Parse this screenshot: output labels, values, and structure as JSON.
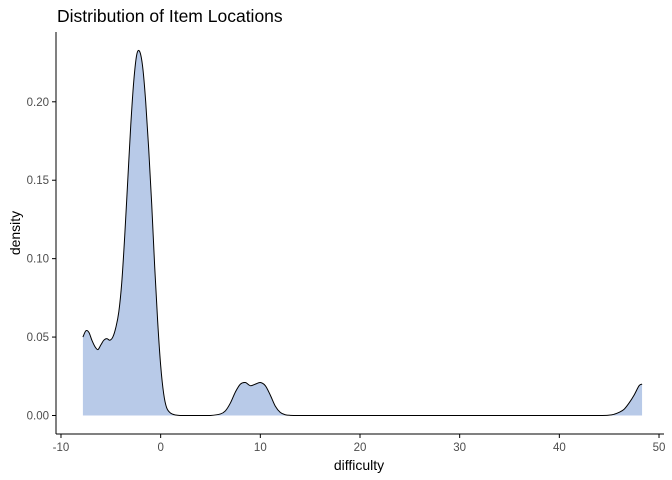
{
  "chart_data": {
    "type": "area",
    "title": "Distribution of Item Locations",
    "xlabel": "difficulty",
    "ylabel": "density",
    "xlim": [
      -10.5,
      50.5
    ],
    "ylim": [
      -0.0118,
      0.2445
    ],
    "x_ticks": [
      -10,
      0,
      10,
      20,
      30,
      40,
      50
    ],
    "x_tick_labels": [
      "-10",
      "0",
      "10",
      "20",
      "30",
      "40",
      "50"
    ],
    "y_ticks": [
      0.0,
      0.05,
      0.1,
      0.15,
      0.2
    ],
    "y_tick_labels": [
      "0.00",
      "0.05",
      "0.10",
      "0.15",
      "0.20"
    ],
    "grid": false,
    "legend": "none",
    "colors": {
      "fill": "#b8cae8",
      "line": "#000000"
    },
    "series": [
      {
        "x": [
          -7.8,
          -7.5,
          -7.2,
          -6.9,
          -6.6,
          -6.3,
          -6.0,
          -5.7,
          -5.4,
          -5.1,
          -4.8,
          -4.5,
          -4.2,
          -3.9,
          -3.6,
          -3.3,
          -3.0,
          -2.7,
          -2.4,
          -2.1,
          -1.8,
          -1.5,
          -1.2,
          -0.9,
          -0.6,
          -0.3,
          0.0,
          0.3,
          0.6,
          1.0,
          1.5,
          2.0,
          3.0,
          4.0,
          5.0,
          6.0,
          6.5,
          7.0,
          7.5,
          8.0,
          8.5,
          9.0,
          9.5,
          10.0,
          10.5,
          11.0,
          11.5,
          12.0,
          12.5,
          13.0,
          14.0,
          16.0,
          20.0,
          25.0,
          30.0,
          35.0,
          40.0,
          44.0,
          45.0,
          45.5,
          46.0,
          46.5,
          47.0,
          47.5,
          48.0,
          48.3
        ],
        "y": [
          0.05,
          0.054,
          0.053,
          0.048,
          0.044,
          0.042,
          0.045,
          0.048,
          0.049,
          0.048,
          0.05,
          0.056,
          0.066,
          0.085,
          0.115,
          0.15,
          0.185,
          0.213,
          0.23,
          0.232,
          0.222,
          0.2,
          0.17,
          0.135,
          0.095,
          0.06,
          0.032,
          0.014,
          0.005,
          0.0015,
          0.0003,
          0.0,
          0.0,
          0.0,
          0.0,
          0.001,
          0.003,
          0.008,
          0.015,
          0.02,
          0.021,
          0.019,
          0.02,
          0.021,
          0.019,
          0.013,
          0.006,
          0.002,
          0.0005,
          0.0001,
          0.0,
          0.0,
          0.0,
          0.0,
          0.0,
          0.0,
          0.0,
          0.0,
          0.0002,
          0.0008,
          0.002,
          0.004,
          0.008,
          0.013,
          0.019,
          0.02
        ]
      }
    ]
  }
}
